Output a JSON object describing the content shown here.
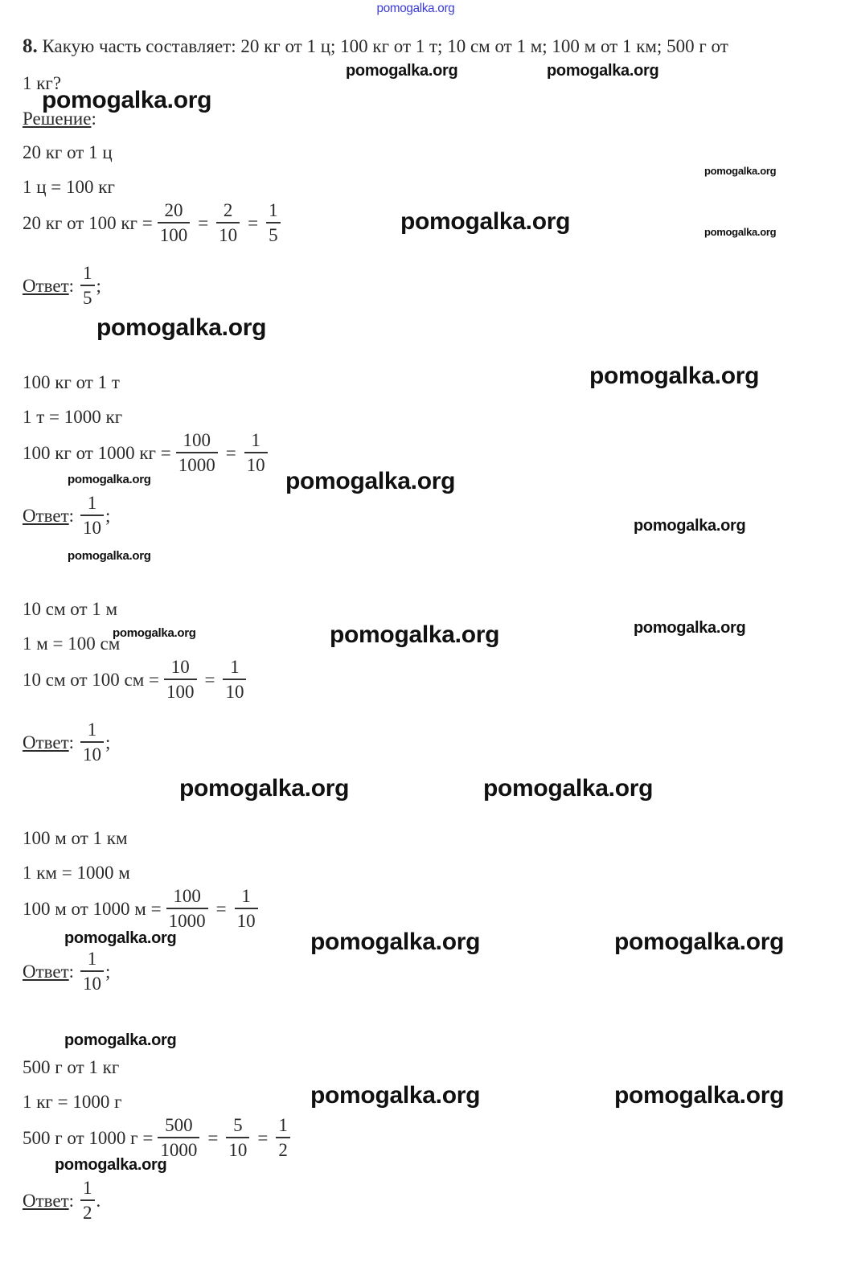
{
  "task": {
    "number": "8.",
    "text": "Какую часть составляет: 20 кг от 1 ц; 100 кг от 1 т; 10 см от 1 м; 100 м от 1 км; 500 г от",
    "text_cont": "1 кг?"
  },
  "solution_label": "Решение",
  "solution_colon": ":",
  "answer_label": "Ответ",
  "sections": [
    {
      "title": "20 кг от 1 ц",
      "conversion": "1 ц = 100 кг",
      "lhs": "20 кг от 100 кг =",
      "fractions": [
        [
          "20",
          "100"
        ],
        [
          "2",
          "10"
        ],
        [
          "1",
          "5"
        ]
      ],
      "answer": [
        "1",
        "5"
      ],
      "answer_end": ";"
    },
    {
      "title": "100 кг от 1 т",
      "conversion": "1 т = 1000 кг",
      "lhs": "100 кг от 1000 кг =",
      "fractions": [
        [
          "100",
          "1000"
        ],
        [
          "1",
          "10"
        ]
      ],
      "answer": [
        "1",
        "10"
      ],
      "answer_end": ";"
    },
    {
      "title": "10 см от 1 м",
      "conversion": "1 м = 100 см",
      "lhs": "10 см от 100 см =",
      "fractions": [
        [
          "10",
          "100"
        ],
        [
          "1",
          "10"
        ]
      ],
      "answer": [
        "1",
        "10"
      ],
      "answer_end": ";"
    },
    {
      "title": "100 м от 1 км",
      "conversion": "1 км = 1000 м",
      "lhs": "100 м от 1000 м =",
      "fractions": [
        [
          "100",
          "1000"
        ],
        [
          "1",
          "10"
        ]
      ],
      "answer": [
        "1",
        "10"
      ],
      "answer_end": ";"
    },
    {
      "title": "500 г от 1 кг",
      "conversion": "1 кг = 1000 г",
      "lhs": "500 г от 1000 г =",
      "fractions": [
        [
          "500",
          "1000"
        ],
        [
          "5",
          "10"
        ],
        [
          "1",
          "2"
        ]
      ],
      "answer": [
        "1",
        "2"
      ],
      "answer_end": "."
    }
  ],
  "watermarks": [
    "pomogalka.org",
    "pomogalka.org",
    "pomogalka.org",
    "pomogalka.org",
    "pomogalka.org",
    "pomogalka.org",
    "pomogalka.org",
    "pomogalka.org",
    "pomogalka.org",
    "pomogalka.org",
    "pomogalka.org",
    "pomogalka.org",
    "pomogalka.org",
    "pomogalka.org",
    "pomogalka.org",
    "pomogalka.org",
    "pomogalka.org",
    "pomogalka.org",
    "pomogalka.org",
    "pomogalka.org",
    "pomogalka.org",
    "pomogalka.org",
    "pomogalka.org",
    "pomogalka.org",
    "pomogalka.org"
  ]
}
